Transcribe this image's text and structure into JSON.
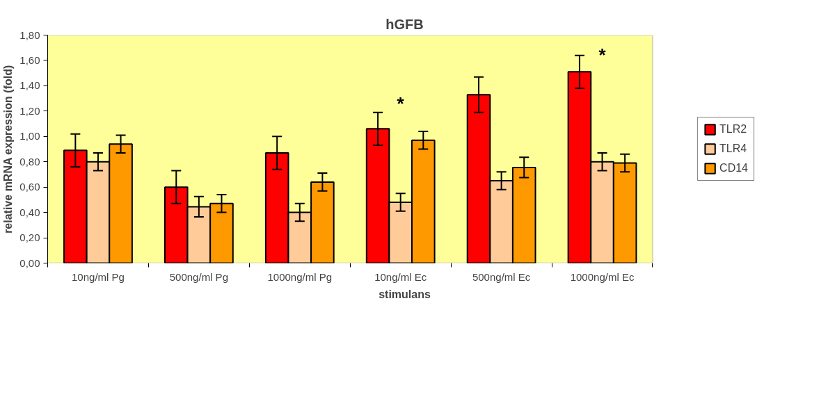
{
  "chart_data": {
    "type": "bar",
    "title": "hGFB",
    "xlabel": "stimulans",
    "ylabel": "relative mRNA expression (fold)",
    "categories": [
      "10ng/ml Pg",
      "500ng/ml Pg",
      "1000ng/ml Pg",
      "10ng/ml Ec",
      "500ng/ml Ec",
      "1000ng/ml Ec"
    ],
    "series": [
      {
        "name": "TLR2",
        "color": "#ff0000",
        "values": [
          0.89,
          0.6,
          0.87,
          1.06,
          1.33,
          1.51
        ],
        "errors": [
          0.13,
          0.13,
          0.13,
          0.13,
          0.14,
          0.13
        ]
      },
      {
        "name": "TLR4",
        "color": "#ffcc99",
        "values": [
          0.8,
          0.445,
          0.4,
          0.48,
          0.65,
          0.8
        ],
        "errors": [
          0.07,
          0.08,
          0.07,
          0.07,
          0.07,
          0.07
        ]
      },
      {
        "name": "CD14",
        "color": "#ff9900",
        "values": [
          0.94,
          0.47,
          0.64,
          0.97,
          0.755,
          0.79
        ],
        "errors": [
          0.07,
          0.07,
          0.07,
          0.07,
          0.08,
          0.07
        ]
      }
    ],
    "ylim": [
      0,
      1.8
    ],
    "yticks": [
      {
        "value": 0,
        "label": "0,00"
      },
      {
        "value": 0.2,
        "label": "0,20"
      },
      {
        "value": 0.4,
        "label": "0,40"
      },
      {
        "value": 0.6,
        "label": "0,60"
      },
      {
        "value": 0.8,
        "label": "0,80"
      },
      {
        "value": 1.0,
        "label": "1,00"
      },
      {
        "value": 1.2,
        "label": "1,20"
      },
      {
        "value": 1.4,
        "label": "1,40"
      },
      {
        "value": 1.6,
        "label": "1,60"
      },
      {
        "value": 1.8,
        "label": "1,80"
      }
    ],
    "annotations": [
      "*",
      "*"
    ],
    "grid": false,
    "legend": "right"
  }
}
